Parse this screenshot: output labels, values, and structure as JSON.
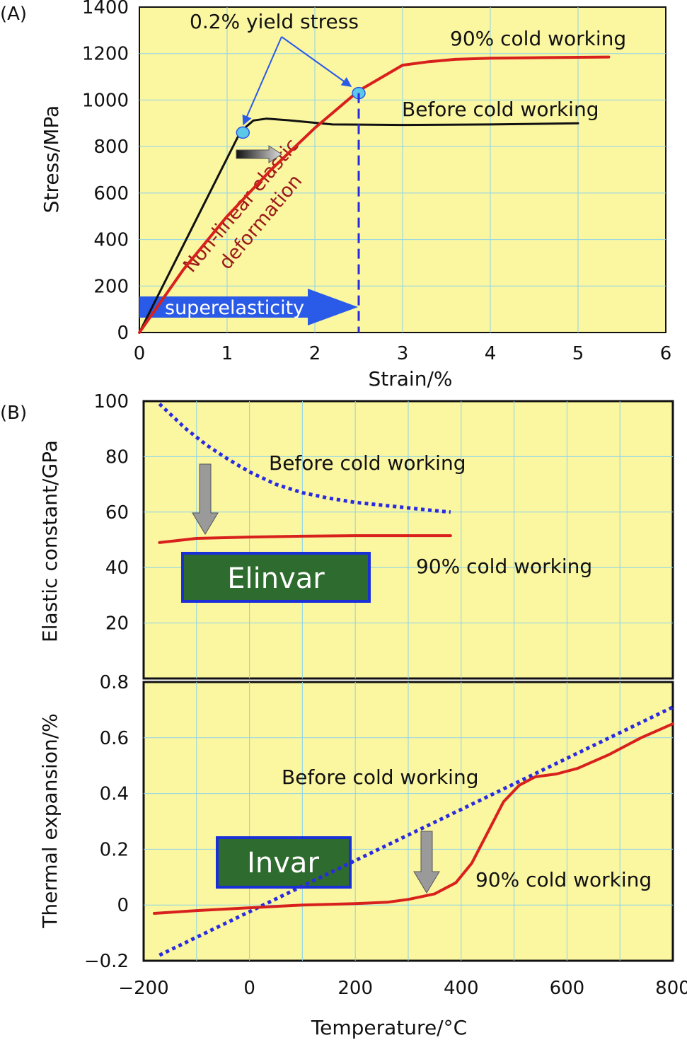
{
  "colors": {
    "plot_bg": "#fbf6a0",
    "grid": "#8ed3ea",
    "red_curve": "#d8201c",
    "black_curve": "#111111",
    "blue_dotted": "#2a2ae0",
    "label_box_green": "#2e6b2e",
    "label_box_border": "#1a2fd8",
    "superelasticity_arrow": "#2a5ae8",
    "yield_marker": "#5bc8e8",
    "gray_arrow": "#9a9a9a"
  },
  "chart_data": [
    {
      "panel": "(A)",
      "type": "line",
      "xlabel": "Strain/%",
      "ylabel": "Stress/MPa",
      "xlim": [
        0,
        6
      ],
      "ylim": [
        0,
        1400
      ],
      "xticks": [
        "0",
        "1",
        "2",
        "3",
        "4",
        "5",
        "6"
      ],
      "yticks": [
        "0",
        "200",
        "400",
        "600",
        "800",
        "1000",
        "1200",
        "1400"
      ],
      "grid": true,
      "series": [
        {
          "name": "Before cold working",
          "color": "black",
          "style": "solid",
          "x": [
            0,
            1.12,
            1.2,
            1.3,
            1.45,
            1.7,
            2.2,
            3,
            4,
            5
          ],
          "y": [
            0,
            840,
            880,
            912,
            920,
            913,
            895,
            893,
            895,
            900
          ]
        },
        {
          "name": "90% cold working",
          "color": "red",
          "style": "solid",
          "x": [
            0,
            0.5,
            1,
            1.5,
            2,
            2.5,
            3,
            3.3,
            3.6,
            4,
            4.5,
            5.35
          ],
          "y": [
            0,
            270,
            500,
            700,
            880,
            1040,
            1150,
            1165,
            1175,
            1180,
            1182,
            1185
          ]
        },
        {
          "name": "0.2% yield stress",
          "type": "marker",
          "color": "#5bc8e8",
          "x": [
            1.18,
            2.5
          ],
          "y": [
            860,
            1030
          ]
        }
      ],
      "annotations": [
        "0.2% yield stress",
        "90% cold working",
        "Before cold working",
        "Non-linear elastic deformation",
        "superelasticity"
      ],
      "vline_dashed_x": 2.5
    },
    {
      "panel": "(B)",
      "type": "line",
      "ylabel": "Elastic constant/GPa",
      "xlim": [
        -200,
        800
      ],
      "ylim": [
        0,
        100
      ],
      "yticks": [
        "20",
        "40",
        "60",
        "80",
        "100"
      ],
      "grid": true,
      "series": [
        {
          "name": "Before cold working",
          "color": "blue",
          "style": "dotted",
          "x": [
            -170,
            -120,
            -80,
            -40,
            0,
            50,
            100,
            150,
            200,
            250,
            300,
            350,
            380
          ],
          "y": [
            99,
            90,
            84,
            79,
            74.5,
            70,
            67,
            65,
            63.5,
            62.5,
            61.5,
            60.5,
            60
          ]
        },
        {
          "name": "90% cold working",
          "color": "red",
          "style": "solid",
          "x": [
            -170,
            -100,
            0,
            100,
            200,
            300,
            380
          ],
          "y": [
            49,
            50.5,
            51,
            51.3,
            51.5,
            51.5,
            51.5
          ]
        }
      ],
      "annotations": [
        "Before cold working",
        "90% cold working",
        "Elinvar"
      ]
    },
    {
      "panel": "",
      "type": "line",
      "xlabel": "Temperature/°C",
      "ylabel": "Thermal expansion/%",
      "xlim": [
        -200,
        800
      ],
      "ylim": [
        -0.2,
        0.8
      ],
      "xticks": [
        "−200",
        "0",
        "200",
        "400",
        "600",
        "800"
      ],
      "yticks": [
        "−0.2",
        "0",
        "0.2",
        "0.4",
        "0.6",
        "0.8"
      ],
      "grid": true,
      "series": [
        {
          "name": "Before cold working",
          "color": "blue",
          "style": "dotted",
          "x": [
            -170,
            800
          ],
          "y": [
            -0.18,
            0.71
          ]
        },
        {
          "name": "90% cold working",
          "color": "red",
          "style": "solid",
          "x": [
            -180,
            -100,
            0,
            100,
            200,
            260,
            300,
            350,
            390,
            420,
            450,
            480,
            510,
            540,
            580,
            620,
            680,
            740,
            800
          ],
          "y": [
            -0.03,
            -0.02,
            -0.01,
            0,
            0.005,
            0.01,
            0.02,
            0.04,
            0.08,
            0.15,
            0.26,
            0.37,
            0.43,
            0.46,
            0.47,
            0.49,
            0.54,
            0.6,
            0.65
          ]
        }
      ],
      "annotations": [
        "Before cold working",
        "90% cold working",
        "Invar"
      ]
    }
  ]
}
